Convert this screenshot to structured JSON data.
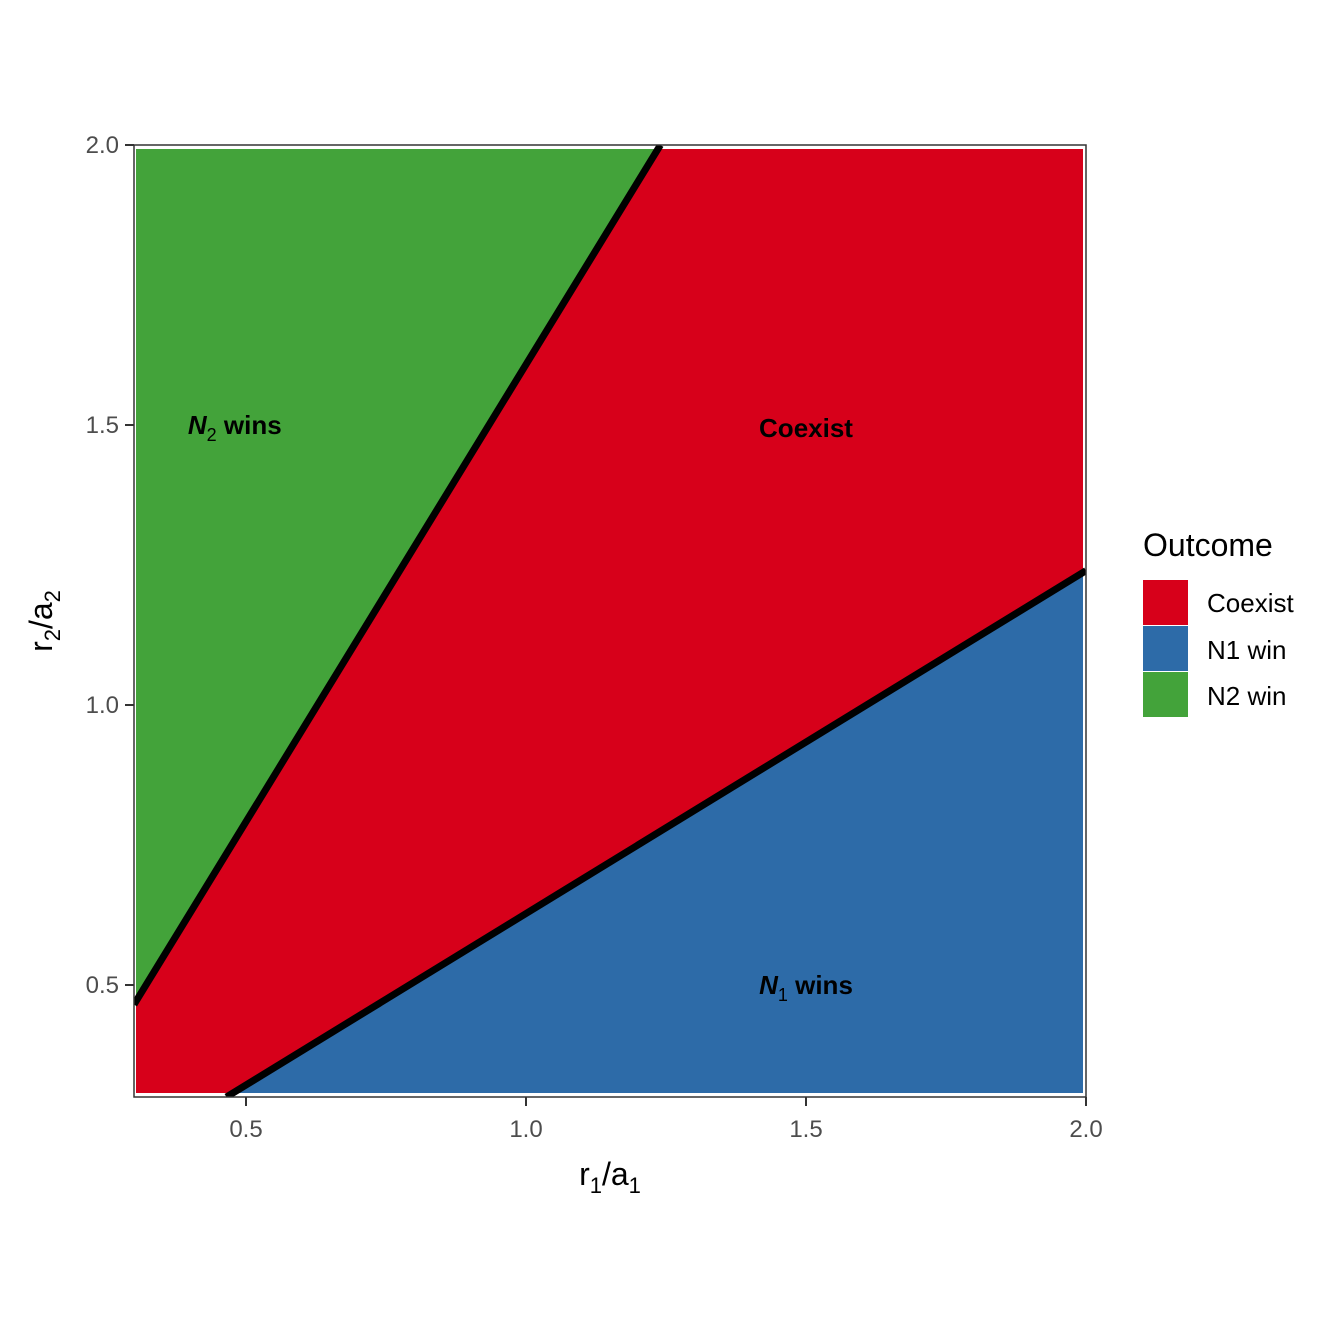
{
  "chart_data": {
    "type": "area",
    "xlabel": {
      "base": "r",
      "sub": "1",
      "sep": "/",
      "base2": "a",
      "sub2": "1"
    },
    "ylabel": {
      "base": "r",
      "sub": "2",
      "sep": "/",
      "base2": "a",
      "sub2": "2"
    },
    "xlim": [
      0.3,
      2.0
    ],
    "ylim": [
      0.3,
      2.0
    ],
    "xticks": [
      0.5,
      1.0,
      1.5,
      2.0
    ],
    "yticks": [
      0.5,
      1.0,
      1.5,
      2.0
    ],
    "xtick_labels": [
      "0.5",
      "1.0",
      "1.5",
      "2.0"
    ],
    "ytick_labels": [
      "0.5",
      "1.0",
      "1.5",
      "2.0"
    ],
    "grid": false,
    "boundaries": [
      {
        "name": "upper",
        "x": [
          0.3,
          1.24
        ],
        "y": [
          0.465,
          2.0
        ]
      },
      {
        "name": "lower",
        "x": [
          0.465,
          2.0
        ],
        "y": [
          0.3,
          1.24
        ]
      }
    ],
    "regions": [
      {
        "key": "coexist",
        "label": "Coexist",
        "color": "#D7001A"
      },
      {
        "key": "n1",
        "label": "N1 win",
        "color": "#2D6BA8"
      },
      {
        "key": "n2",
        "label": "N2 win",
        "color": "#43A33A"
      }
    ],
    "annotations": [
      {
        "key": "n2",
        "base": "N",
        "sub": "2",
        "rest": " wins",
        "x": 0.48,
        "y": 1.5
      },
      {
        "key": "coexist",
        "text": "Coexist",
        "x": 1.5,
        "y": 1.495
      },
      {
        "key": "n1",
        "base": "N",
        "sub": "1",
        "rest": " wins",
        "x": 1.5,
        "y": 0.5
      }
    ],
    "legend": {
      "title": "Outcome",
      "position": "right",
      "items": [
        "Coexist",
        "N1 win",
        "N2 win"
      ]
    }
  }
}
